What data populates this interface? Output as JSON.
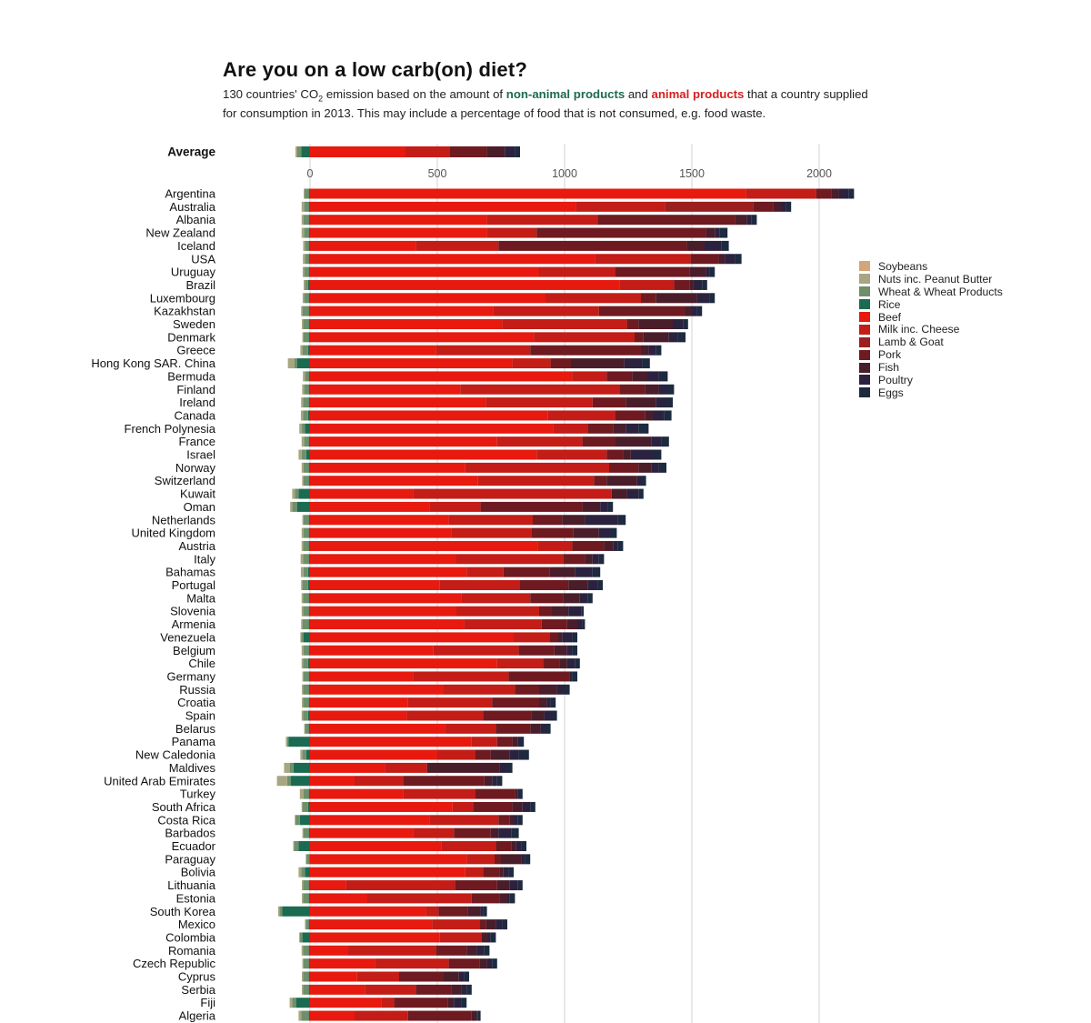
{
  "header": {
    "title": "Are you on a low carb(on) diet?",
    "subtitle_pre": "130 countries' CO",
    "subtitle_sub": "2",
    "subtitle_mid1": " emission based on the amount of ",
    "subtitle_green": "non-animal products",
    "subtitle_mid2": " and ",
    "subtitle_red": "animal products",
    "subtitle_post": " that a country supplied for consumption in 2013. This may include a percentage of food that is not consumed, e.g. food waste."
  },
  "colors": {
    "Soybeans": "#d4a47a",
    "Nuts inc. Peanut Butter": "#a8a682",
    "Wheat & Wheat Products": "#6e8f6a",
    "Rice": "#1b6b52",
    "Beef": "#e8190f",
    "Milk inc. Cheese": "#c41c16",
    "Lamb & Goat": "#9a1f1e",
    "Pork": "#6e1a20",
    "Fish": "#4a1d2a",
    "Poultry": "#2b2240",
    "Eggs": "#1d2a3f"
  },
  "chart_data": {
    "type": "bar",
    "orientation": "horizontal-stacked-diverging",
    "xlim": [
      -100,
      2100
    ],
    "x_ticks": [
      0,
      500,
      1000,
      1500,
      2000
    ],
    "grid": true,
    "legend_position": "right",
    "series_names": [
      "Soybeans",
      "Nuts inc. Peanut Butter",
      "Wheat & Wheat Products",
      "Rice",
      "Beef",
      "Milk inc. Cheese",
      "Lamb & Goat",
      "Pork",
      "Fish",
      "Poultry",
      "Eggs"
    ],
    "non_animal_series": [
      "Soybeans",
      "Nuts inc. Peanut Butter",
      "Wheat & Wheat Products",
      "Rice"
    ],
    "animal_series": [
      "Beef",
      "Milk inc. Cheese",
      "Lamb & Goat",
      "Pork",
      "Fish",
      "Poultry",
      "Eggs"
    ],
    "average": {
      "label": "Average",
      "values": [
        0,
        7,
        15,
        35,
        375,
        175,
        0,
        145,
        70,
        40,
        20
      ]
    },
    "countries": [
      {
        "name": "Argentina",
        "values": [
          0,
          3,
          17,
          5,
          1712,
          277,
          0,
          58,
          30,
          40,
          20
        ]
      },
      {
        "name": "Australia",
        "values": [
          0,
          10,
          18,
          5,
          1045,
          350,
          345,
          80,
          30,
          20,
          20
        ]
      },
      {
        "name": "Albania",
        "values": [
          0,
          8,
          20,
          5,
          695,
          435,
          0,
          540,
          45,
          20,
          20
        ]
      },
      {
        "name": "New Zealand",
        "values": [
          0,
          10,
          18,
          5,
          695,
          195,
          0,
          665,
          35,
          20,
          30
        ]
      },
      {
        "name": "Iceland",
        "values": [
          0,
          7,
          15,
          5,
          415,
          325,
          0,
          740,
          70,
          65,
          30
        ]
      },
      {
        "name": "USA",
        "values": [
          0,
          8,
          15,
          5,
          1120,
          375,
          0,
          110,
          25,
          40,
          25
        ]
      },
      {
        "name": "Uruguay",
        "values": [
          0,
          6,
          18,
          5,
          900,
          300,
          0,
          290,
          65,
          15,
          20
        ]
      },
      {
        "name": "Brazil",
        "values": [
          0,
          5,
          12,
          8,
          1215,
          215,
          0,
          60,
          15,
          35,
          20
        ]
      },
      {
        "name": "Luxembourg",
        "values": [
          0,
          6,
          18,
          5,
          925,
          375,
          0,
          60,
          160,
          50,
          20
        ]
      },
      {
        "name": "Kazakhstan",
        "values": [
          0,
          5,
          25,
          5,
          720,
          415,
          0,
          340,
          25,
          20,
          20
        ]
      },
      {
        "name": "Sweden",
        "values": [
          0,
          5,
          22,
          5,
          755,
          490,
          0,
          45,
          135,
          40,
          20
        ]
      },
      {
        "name": "Denmark",
        "values": [
          0,
          5,
          20,
          5,
          880,
          395,
          0,
          35,
          100,
          35,
          30
        ]
      },
      {
        "name": "Greece",
        "values": [
          0,
          8,
          22,
          8,
          495,
          370,
          0,
          435,
          30,
          30,
          20
        ]
      },
      {
        "name": "Hong Kong SAR. China",
        "values": [
          0,
          25,
          12,
          50,
          795,
          150,
          0,
          80,
          210,
          70,
          30
        ]
      },
      {
        "name": "Bermuda",
        "values": [
          0,
          8,
          15,
          5,
          1030,
          135,
          0,
          100,
          60,
          45,
          35
        ]
      },
      {
        "name": "Finland",
        "values": [
          0,
          8,
          18,
          5,
          590,
          625,
          0,
          100,
          55,
          30,
          30
        ]
      },
      {
        "name": "Ireland",
        "values": [
          0,
          8,
          22,
          5,
          690,
          420,
          0,
          130,
          120,
          40,
          25
        ]
      },
      {
        "name": "Canada",
        "values": [
          0,
          8,
          20,
          8,
          935,
          265,
          0,
          115,
          35,
          40,
          30
        ]
      },
      {
        "name": "French Polynesia",
        "values": [
          0,
          10,
          12,
          20,
          955,
          135,
          0,
          100,
          50,
          50,
          40
        ]
      },
      {
        "name": "France",
        "values": [
          0,
          10,
          18,
          5,
          735,
          335,
          0,
          130,
          140,
          40,
          30
        ]
      },
      {
        "name": "Israel",
        "values": [
          0,
          12,
          18,
          15,
          890,
          275,
          0,
          65,
          30,
          90,
          30
        ]
      },
      {
        "name": "Norway",
        "values": [
          0,
          8,
          20,
          5,
          610,
          565,
          0,
          115,
          50,
          30,
          30
        ]
      },
      {
        "name": "Switzerland",
        "values": [
          0,
          6,
          20,
          5,
          660,
          455,
          0,
          50,
          120,
          15,
          20
        ]
      },
      {
        "name": "Kuwait",
        "values": [
          0,
          10,
          15,
          45,
          405,
          780,
          0,
          0,
          60,
          45,
          20
        ]
      },
      {
        "name": "Oman",
        "values": [
          0,
          8,
          20,
          50,
          470,
          200,
          0,
          400,
          70,
          30,
          20
        ]
      },
      {
        "name": "Netherlands",
        "values": [
          0,
          5,
          20,
          5,
          545,
          330,
          0,
          115,
          90,
          130,
          30
        ]
      },
      {
        "name": "United Kingdom",
        "values": [
          0,
          8,
          20,
          5,
          555,
          315,
          0,
          165,
          100,
          40,
          30
        ]
      },
      {
        "name": "Austria",
        "values": [
          0,
          6,
          22,
          5,
          895,
          135,
          0,
          125,
          35,
          20,
          20
        ]
      },
      {
        "name": "Italy",
        "values": [
          0,
          10,
          22,
          5,
          575,
          420,
          0,
          85,
          30,
          25,
          20
        ]
      },
      {
        "name": "Bahamas",
        "values": [
          0,
          10,
          18,
          8,
          615,
          145,
          0,
          180,
          100,
          70,
          30
        ]
      },
      {
        "name": "Portugal",
        "values": [
          0,
          5,
          22,
          8,
          510,
          315,
          0,
          190,
          75,
          40,
          20
        ]
      },
      {
        "name": "Malta",
        "values": [
          0,
          6,
          22,
          5,
          595,
          270,
          0,
          130,
          65,
          30,
          20
        ]
      },
      {
        "name": "Slovenia",
        "values": [
          0,
          6,
          22,
          5,
          575,
          325,
          0,
          50,
          65,
          50,
          10
        ]
      },
      {
        "name": "Armenia",
        "values": [
          0,
          5,
          25,
          5,
          605,
          305,
          0,
          100,
          40,
          20,
          10
        ]
      },
      {
        "name": "Venezuela",
        "values": [
          0,
          3,
          10,
          25,
          800,
          140,
          0,
          35,
          15,
          40,
          20
        ]
      },
      {
        "name": "Belgium",
        "values": [
          0,
          8,
          20,
          5,
          485,
          335,
          0,
          140,
          50,
          20,
          20
        ]
      },
      {
        "name": "Chile",
        "values": [
          0,
          5,
          20,
          8,
          735,
          180,
          0,
          65,
          30,
          30,
          20
        ]
      },
      {
        "name": "Germany",
        "values": [
          0,
          5,
          20,
          5,
          405,
          375,
          0,
          240,
          0,
          10,
          20
        ]
      },
      {
        "name": "Russia",
        "values": [
          0,
          5,
          22,
          5,
          525,
          280,
          0,
          95,
          70,
          30,
          20
        ]
      },
      {
        "name": "Croatia",
        "values": [
          0,
          5,
          22,
          5,
          385,
          330,
          0,
          185,
          30,
          15,
          20
        ]
      },
      {
        "name": "Spain",
        "values": [
          0,
          5,
          20,
          8,
          380,
          300,
          0,
          190,
          50,
          30,
          20
        ]
      },
      {
        "name": "Belarus",
        "values": [
          0,
          3,
          15,
          5,
          530,
          200,
          0,
          135,
          40,
          20,
          20
        ]
      },
      {
        "name": "Panama",
        "values": [
          0,
          5,
          5,
          85,
          635,
          100,
          0,
          60,
          20,
          10,
          15
        ]
      },
      {
        "name": "New Caledonia",
        "values": [
          0,
          8,
          15,
          15,
          500,
          150,
          0,
          60,
          75,
          35,
          40
        ]
      },
      {
        "name": "Maldives",
        "values": [
          0,
          22,
          15,
          65,
          295,
          165,
          0,
          0,
          285,
          30,
          20
        ]
      },
      {
        "name": "United Arab Emirates",
        "values": [
          0,
          40,
          15,
          75,
          175,
          190,
          0,
          320,
          30,
          20,
          20
        ]
      },
      {
        "name": "Turkey",
        "values": [
          0,
          15,
          20,
          5,
          365,
          285,
          0,
          155,
          10,
          10,
          10
        ]
      },
      {
        "name": "South Africa",
        "values": [
          0,
          3,
          22,
          8,
          560,
          80,
          0,
          155,
          40,
          30,
          20
        ]
      },
      {
        "name": "Costa Rica",
        "values": [
          0,
          2,
          18,
          40,
          470,
          270,
          0,
          45,
          15,
          15,
          20
        ]
      },
      {
        "name": "Barbados",
        "values": [
          0,
          5,
          20,
          5,
          405,
          160,
          0,
          145,
          30,
          50,
          30
        ]
      },
      {
        "name": "Ecuador",
        "values": [
          0,
          3,
          18,
          45,
          515,
          215,
          0,
          60,
          20,
          20,
          20
        ]
      },
      {
        "name": "Paraguay",
        "values": [
          0,
          2,
          12,
          3,
          615,
          110,
          0,
          25,
          80,
          15,
          20
        ]
      },
      {
        "name": "Bolivia",
        "values": [
          0,
          10,
          15,
          20,
          610,
          70,
          0,
          65,
          15,
          20,
          20
        ]
      },
      {
        "name": "Lithuania",
        "values": [
          0,
          5,
          22,
          5,
          140,
          430,
          0,
          165,
          50,
          30,
          20
        ]
      },
      {
        "name": "Estonia",
        "values": [
          0,
          5,
          22,
          5,
          225,
          410,
          0,
          110,
          30,
          10,
          20
        ]
      },
      {
        "name": "South Korea",
        "values": [
          0,
          5,
          10,
          110,
          455,
          50,
          0,
          115,
          50,
          10,
          15
        ]
      },
      {
        "name": "Mexico",
        "values": [
          0,
          3,
          12,
          5,
          480,
          185,
          0,
          25,
          40,
          25,
          20
        ]
      },
      {
        "name": "Colombia",
        "values": [
          0,
          3,
          10,
          30,
          510,
          165,
          0,
          0,
          25,
          10,
          20
        ]
      },
      {
        "name": "Romania",
        "values": [
          0,
          6,
          22,
          5,
          150,
          345,
          0,
          120,
          40,
          30,
          20
        ]
      },
      {
        "name": "Czech Republic",
        "values": [
          0,
          5,
          20,
          5,
          255,
          290,
          0,
          120,
          30,
          20,
          20
        ]
      },
      {
        "name": "Cyprus",
        "values": [
          0,
          5,
          22,
          5,
          185,
          165,
          0,
          175,
          60,
          20,
          20
        ]
      },
      {
        "name": "Serbia",
        "values": [
          0,
          5,
          22,
          5,
          215,
          200,
          0,
          140,
          40,
          20,
          20
        ]
      },
      {
        "name": "Fiji",
        "values": [
          0,
          10,
          15,
          55,
          280,
          50,
          0,
          210,
          25,
          30,
          20
        ]
      },
      {
        "name": "Algeria",
        "values": [
          0,
          10,
          30,
          5,
          175,
          210,
          0,
          250,
          20,
          5,
          10
        ]
      }
    ]
  }
}
